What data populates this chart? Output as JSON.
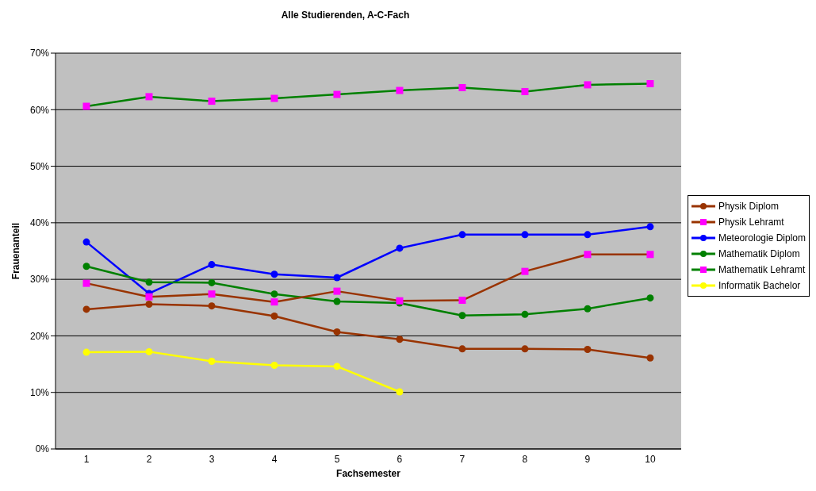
{
  "chart_data": {
    "type": "line",
    "title": "Alle Studierenden, A-C-Fach",
    "xlabel": "Fachsemester",
    "ylabel": "Frauenanteil",
    "categories": [
      "1",
      "2",
      "3",
      "4",
      "5",
      "6",
      "7",
      "8",
      "9",
      "10"
    ],
    "series": [
      {
        "name": "Physik Diplom",
        "color": "#993300",
        "marker": "circle",
        "values": [
          24.7,
          25.6,
          25.3,
          23.5,
          20.7,
          19.4,
          17.7,
          17.7,
          17.6,
          16.1
        ]
      },
      {
        "name": "Physik Lehramt",
        "color": "#993300",
        "marker": "square",
        "colors": [
          "#ff00ff",
          "#ff00ff",
          "#ff00ff",
          "#ff00ff",
          "#ff00ff",
          "#ff00ff",
          "#ff00ff",
          "#ff00ff",
          "#ff00ff",
          "#ff00ff"
        ],
        "values": [
          29.3,
          26.9,
          27.4,
          26.0,
          27.9,
          26.2,
          26.3,
          31.4,
          34.4,
          34.4
        ]
      },
      {
        "name": "Meteorologie Diplom",
        "color": "#0000ff",
        "marker": "circle",
        "values": [
          36.6,
          27.5,
          32.6,
          30.9,
          30.3,
          35.5,
          37.9,
          37.9,
          37.9,
          39.3
        ]
      },
      {
        "name": "Mathematik Diplom",
        "color": "#008000",
        "marker": "circle",
        "values": [
          32.3,
          29.5,
          29.4,
          27.4,
          26.1,
          25.8,
          23.6,
          23.8,
          24.8,
          26.7
        ]
      },
      {
        "name": "Mathematik Lehramt",
        "color": "#008000",
        "marker": "square",
        "colors": [
          "#ff00ff",
          "#ff00ff",
          "#ff00ff",
          "#ff00ff",
          "#ff00ff",
          "#ff00ff",
          "#ff00ff",
          "#ff00ff",
          "#ff00ff",
          "#ff00ff"
        ],
        "values": [
          60.6,
          62.3,
          61.5,
          62.0,
          62.7,
          63.4,
          63.9,
          63.2,
          64.4,
          64.6
        ]
      },
      {
        "name": "Informatik Bachelor",
        "color": "#ffff00",
        "marker": "circle",
        "values": [
          17.1,
          17.2,
          15.5,
          14.8,
          14.6,
          10.1,
          null,
          null,
          null,
          null
        ]
      }
    ],
    "ylim": [
      0,
      70
    ],
    "yticks": [
      {
        "value": 0,
        "label": "0%"
      },
      {
        "value": 10,
        "label": "10%"
      },
      {
        "value": 20,
        "label": "20%"
      },
      {
        "value": 30,
        "label": "30%"
      },
      {
        "value": 40,
        "label": "40%"
      },
      {
        "value": 50,
        "label": "50%"
      },
      {
        "value": 60,
        "label": "60%"
      },
      {
        "value": 70,
        "label": "70%"
      }
    ],
    "grid": "y",
    "legend": "right"
  }
}
